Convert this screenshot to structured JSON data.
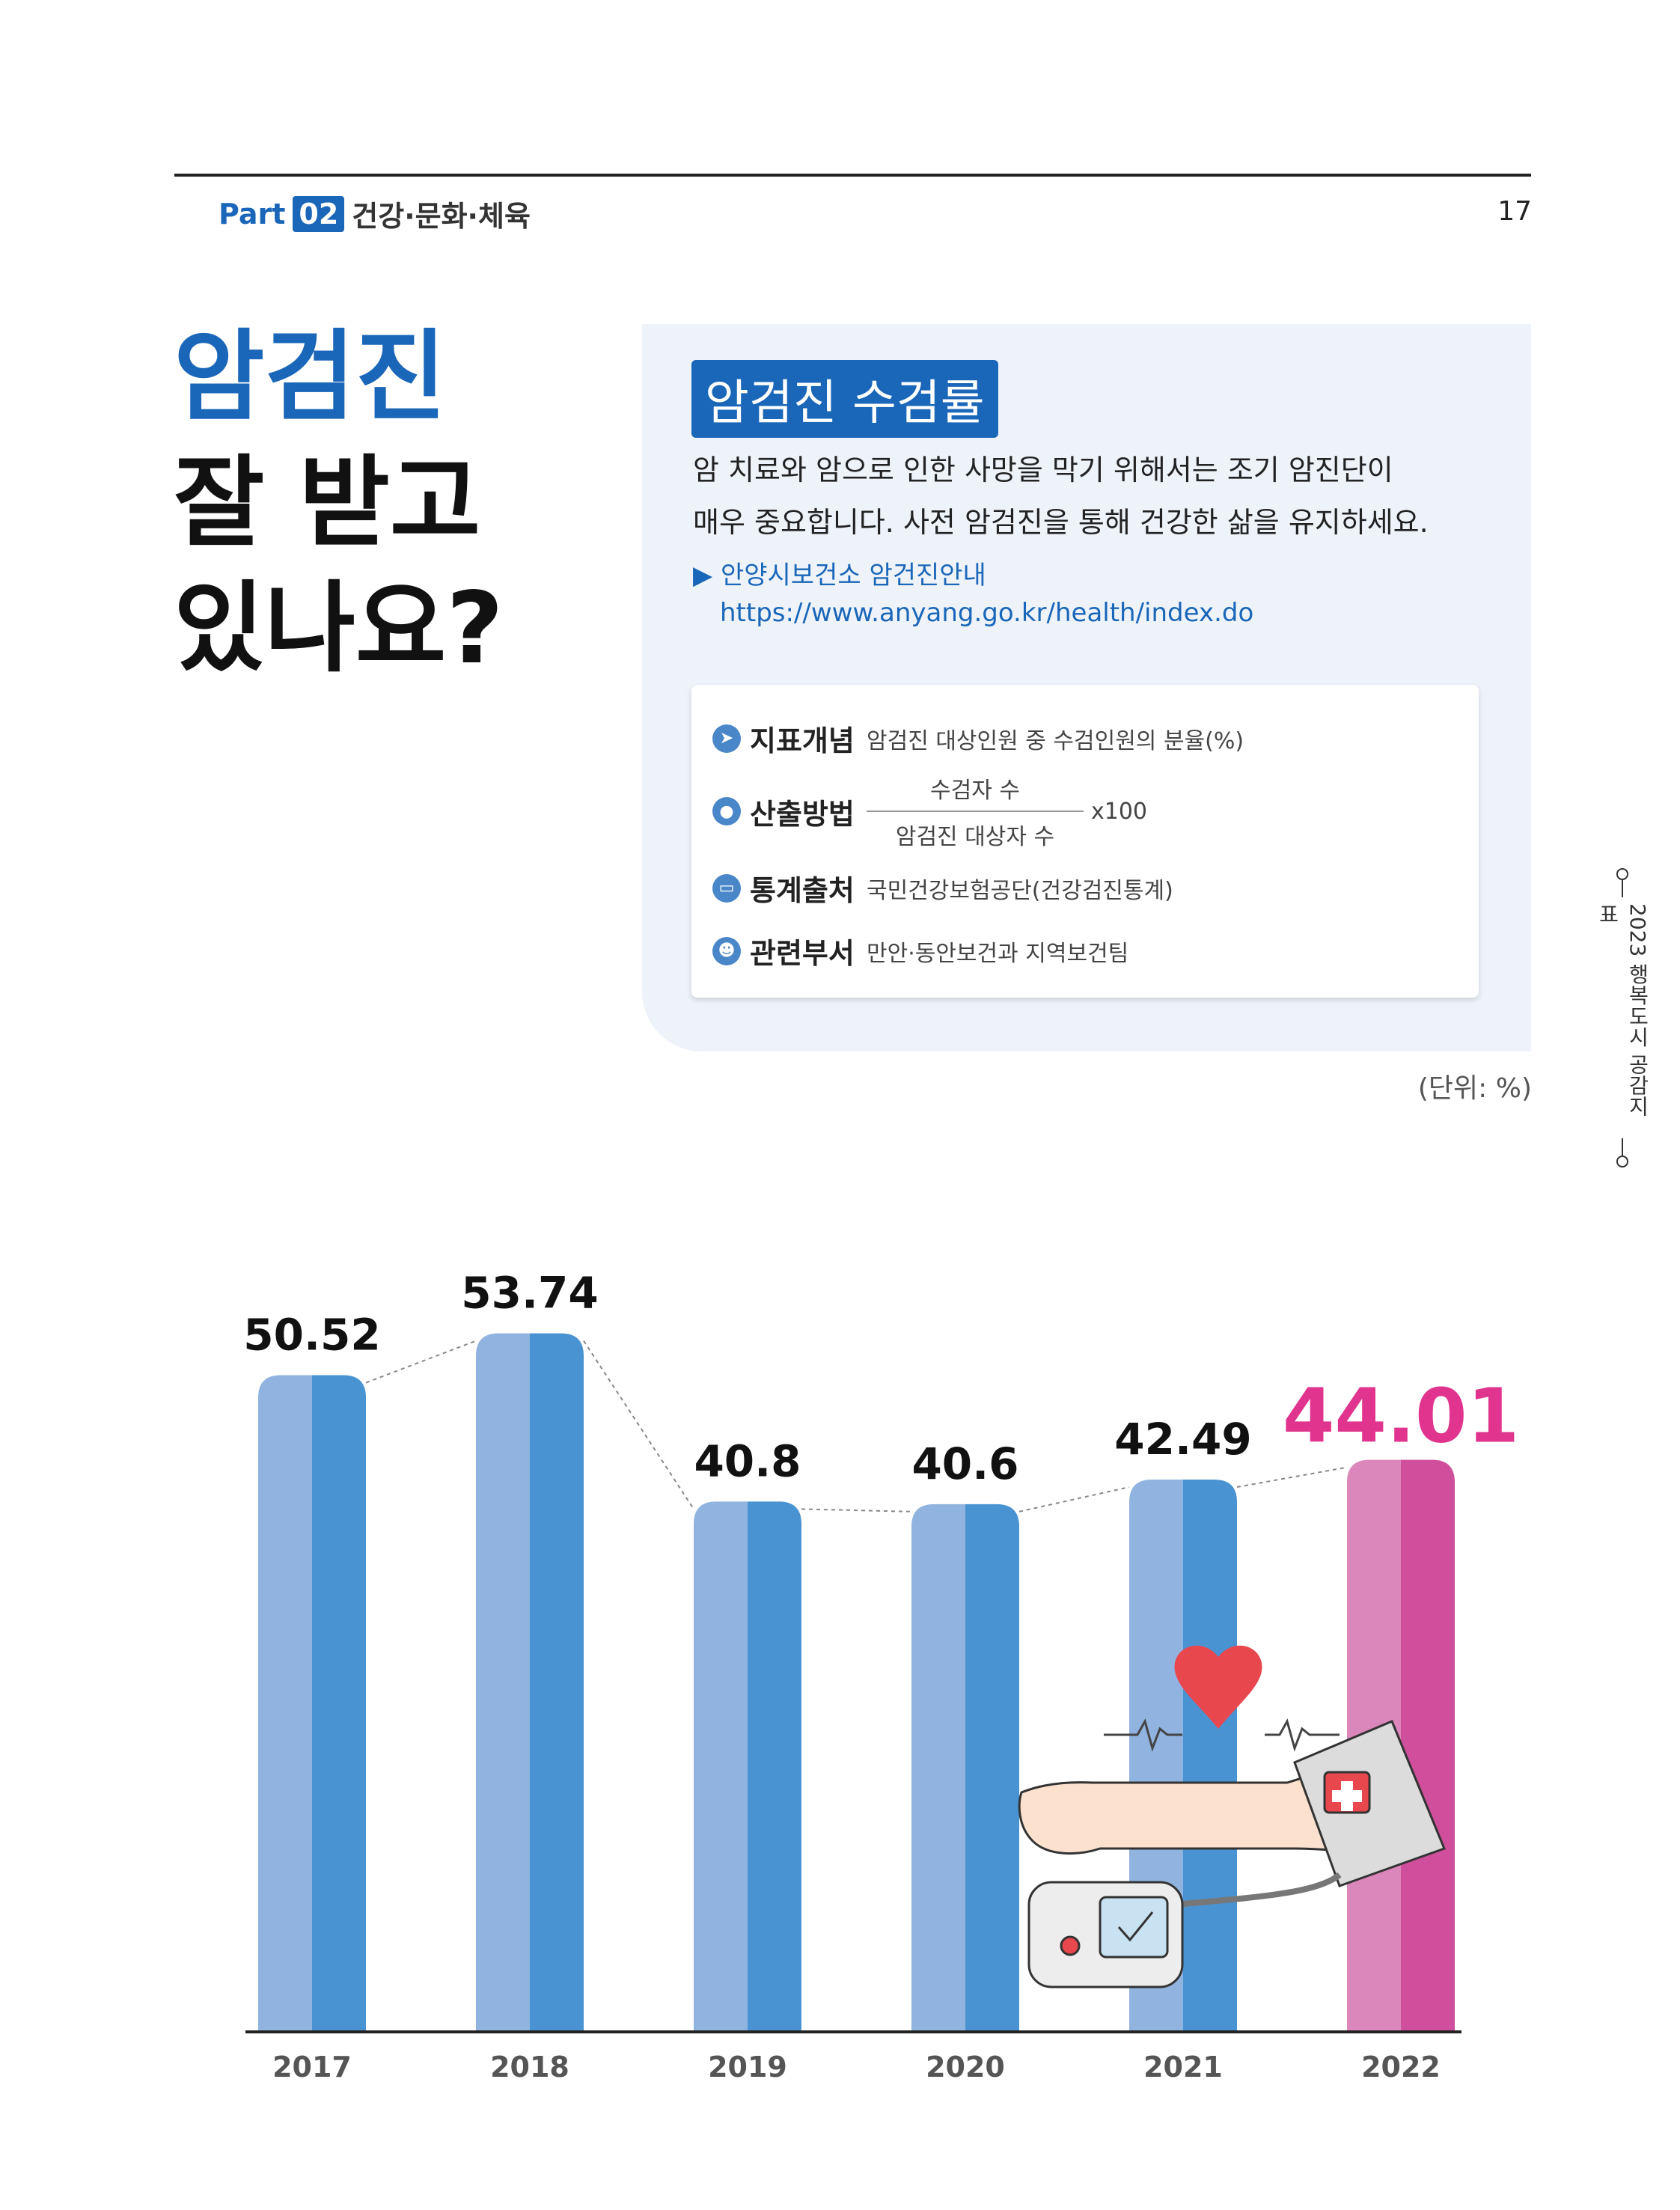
{
  "header": {
    "part_label": "Part",
    "part_number": "02",
    "part_title": "건강·문화·체육",
    "page_number": "17"
  },
  "headline": {
    "line1": "암검진",
    "line2": "잘 받고",
    "line3": "있나요?"
  },
  "info": {
    "badge": "암검진 수검률",
    "desc_line1": "암 치료와 암으로 인한 사망을 막기 위해서는 조기 암진단이",
    "desc_line2": "매우 중요합니다. 사전 암검진을 통해 건강한 삶을 유지하세요.",
    "link_label": "▶ 안양시보건소 암건진안내",
    "link_url": "https://www.anyang.go.kr/health/index.do"
  },
  "definitions": {
    "concept_label": "지표개념",
    "concept_value": "암검진 대상인원 중 수검인원의 분율(%)",
    "method_label": "산출방법",
    "method_numerator": "수검자 수",
    "method_denominator": "암검진 대상자 수",
    "method_multiplier": "x100",
    "source_label": "통계출처",
    "source_value": "국민건강보험공단(건강검진통계)",
    "dept_label": "관련부서",
    "dept_value": "만안·동안보건과 지역보건팀"
  },
  "icons": {
    "concept": "paper-plane-icon",
    "method": "speech-bubble-icon",
    "source": "monitor-icon",
    "dept": "people-icon"
  },
  "unit_label": "(단위: %)",
  "side_text": "2023 행복도시 공감지표",
  "colors": {
    "accent_blue": "#1a66b8",
    "bar_blue_light": "#90b4df",
    "bar_blue_dark": "#4a93d2",
    "bar_pink_light": "#dc87bb",
    "bar_pink_dark": "#cf4f9c",
    "highlight_pink": "#e0348e"
  },
  "chart_data": {
    "type": "bar",
    "categories": [
      "2017",
      "2018",
      "2019",
      "2020",
      "2021",
      "2022"
    ],
    "values": [
      50.52,
      53.74,
      40.8,
      40.6,
      42.49,
      44.01
    ],
    "value_labels": [
      "50.52",
      "53.74",
      "40.8",
      "40.6",
      "42.49",
      "44.01"
    ],
    "highlight_index": 5,
    "ylim": [
      0,
      57
    ],
    "title": "",
    "xlabel": "",
    "ylabel": "",
    "grid": false,
    "trend_line": "dashed"
  }
}
